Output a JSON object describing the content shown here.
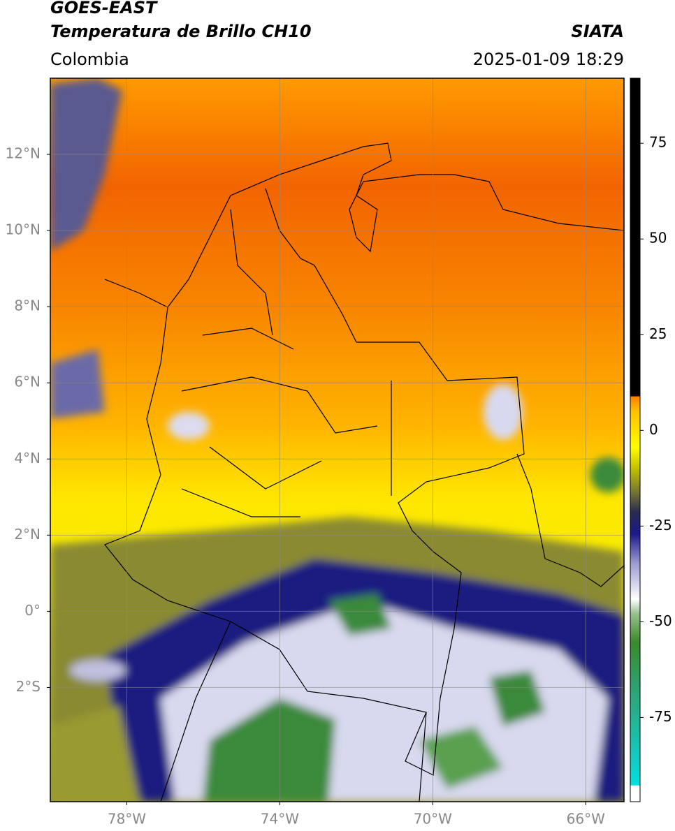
{
  "header": {
    "satellite": "GOES-EAST",
    "product": "Temperatura de Brillo CH10",
    "agency": "SIATA",
    "region": "Colombia",
    "datetime": "2025-01-09 18:29"
  },
  "map": {
    "xlim": [
      -80,
      -65
    ],
    "ylim": [
      -5,
      14
    ],
    "xticks": [
      {
        "value": -78,
        "label": "78°W"
      },
      {
        "value": -74,
        "label": "74°W"
      },
      {
        "value": -70,
        "label": "70°W"
      },
      {
        "value": -66,
        "label": "66°W"
      }
    ],
    "yticks": [
      {
        "value": 12,
        "label": "12°N"
      },
      {
        "value": 10,
        "label": "10°N"
      },
      {
        "value": 8,
        "label": "8°N"
      },
      {
        "value": 6,
        "label": "6°N"
      },
      {
        "value": 4,
        "label": "4°N"
      },
      {
        "value": 2,
        "label": "2°N"
      },
      {
        "value": 0,
        "label": "0°"
      },
      {
        "value": -2,
        "label": "2°S"
      }
    ],
    "grid": true
  },
  "colorbar": {
    "lim": [
      -97,
      92
    ],
    "ticks": [
      75,
      50,
      25,
      0,
      -25,
      -50,
      -75
    ]
  }
}
